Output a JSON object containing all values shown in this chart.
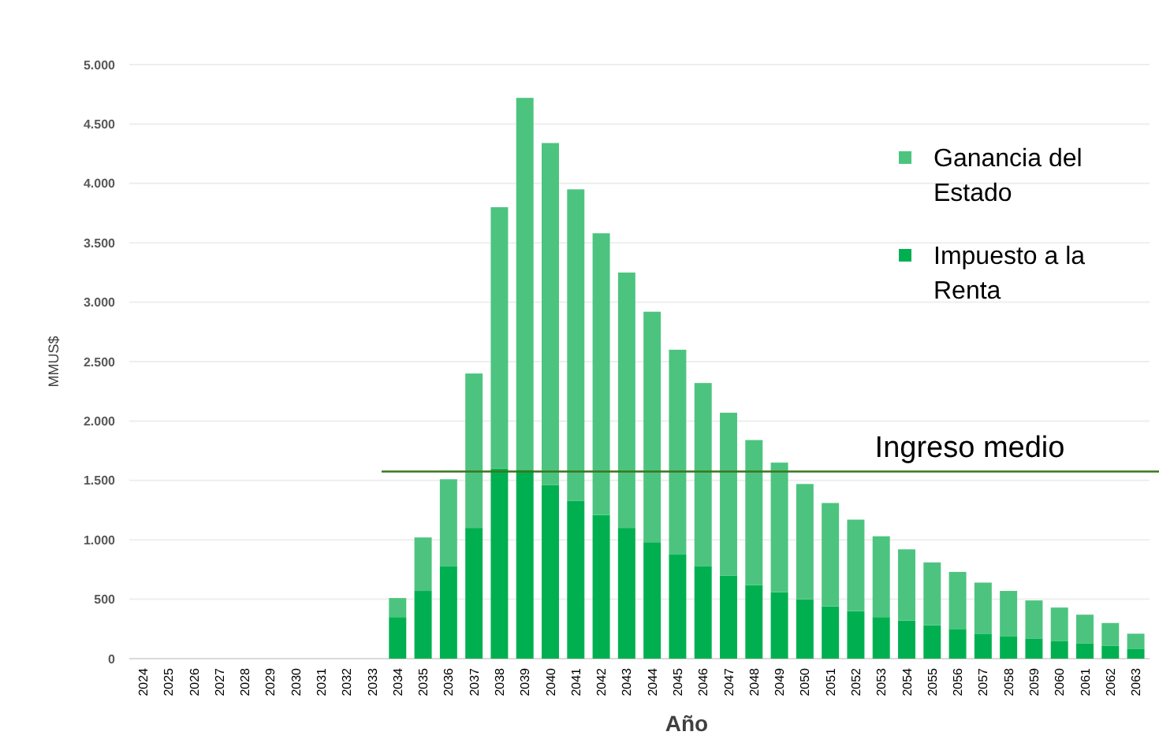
{
  "chart_data": {
    "type": "bar",
    "stacked": true,
    "xlabel": "Año",
    "ylabel": "MMUS$",
    "categories": [
      "2024",
      "2025",
      "2026",
      "2027",
      "2028",
      "2029",
      "2030",
      "2031",
      "2032",
      "2033",
      "2034",
      "2035",
      "2036",
      "2037",
      "2038",
      "2039",
      "2040",
      "2041",
      "2042",
      "2043",
      "2044",
      "2045",
      "2046",
      "2047",
      "2048",
      "2049",
      "2050",
      "2051",
      "2052",
      "2053",
      "2054",
      "2055",
      "2056",
      "2057",
      "2058",
      "2059",
      "2060",
      "2061",
      "2062",
      "2063"
    ],
    "series": [
      {
        "name": "Impuesto a la Renta",
        "color": "#00b050",
        "values": [
          null,
          null,
          null,
          null,
          null,
          null,
          null,
          null,
          null,
          null,
          350,
          570,
          780,
          1100,
          1600,
          1590,
          1460,
          1330,
          1210,
          1100,
          980,
          880,
          780,
          700,
          620,
          560,
          500,
          440,
          400,
          350,
          320,
          280,
          250,
          210,
          190,
          170,
          150,
          130,
          110,
          80
        ]
      },
      {
        "name": "Ganancia del Estado",
        "color": "#4cc47f",
        "values": [
          null,
          null,
          null,
          null,
          null,
          null,
          null,
          null,
          null,
          null,
          160,
          450,
          730,
          1300,
          2200,
          3130,
          2880,
          2620,
          2370,
          2150,
          1940,
          1720,
          1540,
          1370,
          1220,
          1090,
          970,
          870,
          770,
          680,
          600,
          530,
          480,
          430,
          380,
          320,
          280,
          240,
          190,
          130
        ]
      }
    ],
    "ylim": [
      0,
      5000
    ],
    "yticks": [
      0,
      {
        "value": 500,
        "label": "500"
      },
      {
        "value": 1000,
        "label": "1.000"
      },
      {
        "value": 1500,
        "label": "1.500"
      },
      {
        "value": 2000,
        "label": "2.000"
      },
      {
        "value": 2500,
        "label": "2.500"
      },
      {
        "value": 3000,
        "label": "3.000"
      },
      {
        "value": 3500,
        "label": "3.500"
      },
      {
        "value": 4000,
        "label": "4.000"
      },
      {
        "value": 4500,
        "label": "4.500"
      },
      {
        "value": 5000,
        "label": "5.000"
      }
    ],
    "grid": "y",
    "legend": "top right",
    "ref_lines": [
      {
        "axis": "y",
        "value": 1575,
        "label": "Ingreso medio",
        "color": "#38761d"
      }
    ]
  }
}
